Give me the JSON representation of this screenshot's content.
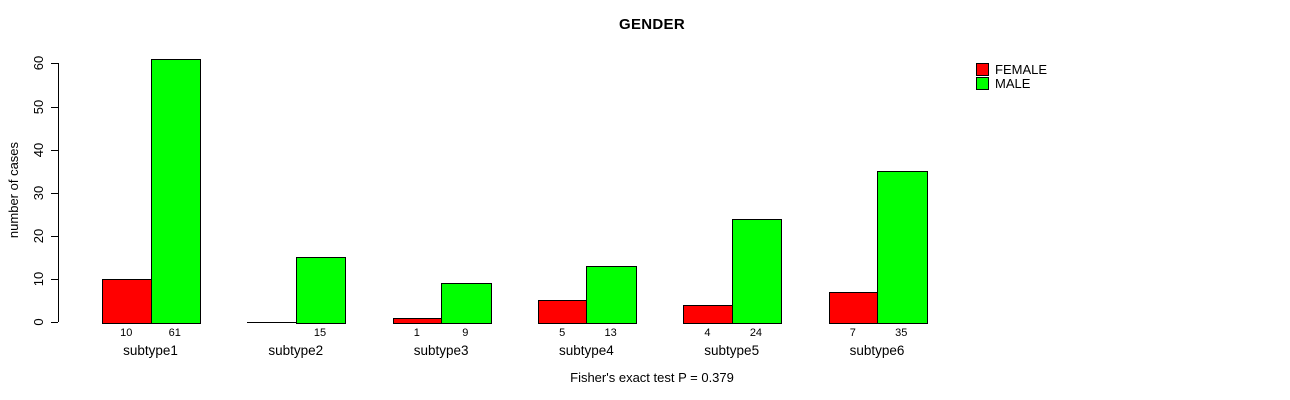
{
  "chart_data": {
    "type": "bar",
    "title": "GENDER",
    "ylabel": "number of cases",
    "xlabel": "",
    "ylim": [
      0,
      60
    ],
    "yticks": [
      0,
      10,
      20,
      30,
      40,
      50,
      60
    ],
    "grid": false,
    "legend_position": "top-right",
    "categories": [
      "subtype1",
      "subtype2",
      "subtype3",
      "subtype4",
      "subtype5",
      "subtype6"
    ],
    "series": [
      {
        "name": "FEMALE",
        "color": "#ff0000",
        "values": [
          10,
          0,
          1,
          5,
          4,
          7
        ],
        "value_labels": [
          "10",
          "",
          "1",
          "5",
          "4",
          "7"
        ]
      },
      {
        "name": "MALE",
        "color": "#00ff00",
        "values": [
          61,
          15,
          9,
          13,
          24,
          35
        ],
        "value_labels": [
          "61",
          "15",
          "9",
          "13",
          "24",
          "35"
        ]
      }
    ],
    "annotation": "Fisher's exact test P = 0.379"
  },
  "colors": {
    "axis": "#000000",
    "background": "#ffffff",
    "female": "#ff0000",
    "male": "#00ff00"
  }
}
